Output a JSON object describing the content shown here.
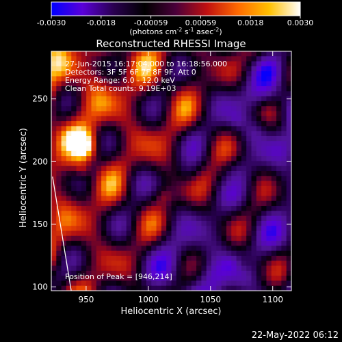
{
  "chart_data": {
    "type": "heatmap",
    "title": "Reconstructed RHESSI Image",
    "xlabel": "Heliocentric X (arcsec)",
    "ylabel": "Heliocentric Y (arcsec)",
    "xlim": [
      922,
      1115
    ],
    "ylim": [
      97,
      288
    ],
    "x_ticks": [
      950,
      1000,
      1050,
      1100
    ],
    "y_ticks": [
      100,
      150,
      200,
      250
    ],
    "colorbar": {
      "range": [
        -0.003,
        0.003
      ],
      "ticks": [
        "-0.0030",
        "-0.0018",
        "-0.00059",
        "0.00059",
        "0.0018",
        "0.0030"
      ],
      "label_text": "(photons cm",
      "label_exp1": "-2",
      "label_mid": " s",
      "label_exp2": "-1",
      "label_tail": " asec",
      "label_exp3": "-2",
      "label_end": ")",
      "colors": [
        "#0000ff",
        "#5a00d8",
        "#2a0050",
        "#000000",
        "#4a003a",
        "#c01010",
        "#ff6a00",
        "#ffc000",
        "#ffffff"
      ]
    },
    "info_lines": [
      "27-Jun-2015 16:17:04.000 to 16:18:56.000",
      "Detectors: 3F 5F 6F 7F 8F 9F, Att 0",
      "Energy Range: 6.0 - 12.0 keV",
      "Clean     Total counts: 9.19E+03"
    ],
    "peak_label": "Position of Peak = [946,214]",
    "peak": [
      946,
      214
    ],
    "limb_line": [
      [
        923,
        188
      ],
      [
        938,
        97
      ]
    ],
    "grid": false
  },
  "footer": {
    "timestamp": "22-May-2022 06:12"
  }
}
